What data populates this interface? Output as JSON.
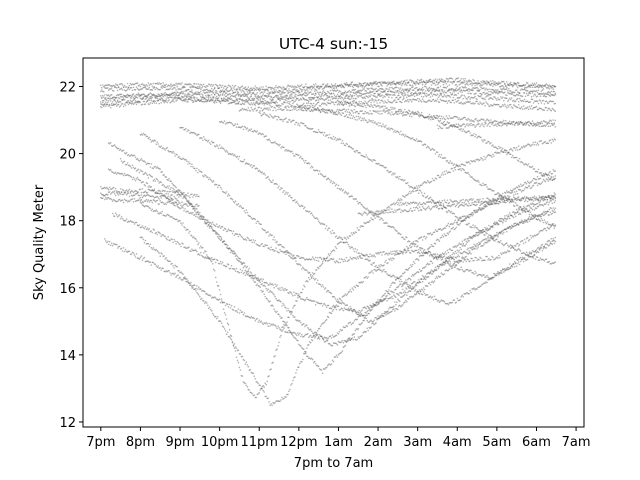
{
  "chart_data": {
    "type": "scatter",
    "title": "UTC-4 sun:-15",
    "xlabel": "7pm to 7am",
    "ylabel": "Sky Quality Meter",
    "x_ticks": [
      "7pm",
      "8pm",
      "9pm",
      "10pm",
      "11pm",
      "12pm",
      "1am",
      "2am",
      "3am",
      "4am",
      "5am",
      "6am",
      "7am"
    ],
    "y_ticks": [
      12,
      14,
      16,
      18,
      20,
      22
    ],
    "xlim": [
      -0.45,
      12.2
    ],
    "ylim": [
      11.85,
      22.85
    ],
    "grid": false,
    "marker_color": "#555555",
    "series": [
      {
        "points": [
          [
            0.0,
            21.6
          ],
          [
            1.0,
            21.7
          ],
          [
            2.0,
            21.75
          ],
          [
            3.0,
            21.7
          ],
          [
            4.0,
            21.65
          ],
          [
            5.0,
            21.7
          ],
          [
            6.0,
            21.75
          ],
          [
            7.0,
            21.8
          ],
          [
            8.0,
            21.85
          ],
          [
            9.0,
            21.85
          ],
          [
            10.0,
            21.8
          ],
          [
            11.0,
            21.75
          ],
          [
            11.5,
            21.7
          ]
        ]
      },
      {
        "points": [
          [
            0.0,
            21.7
          ],
          [
            1.0,
            21.75
          ],
          [
            2.0,
            21.8
          ],
          [
            3.0,
            21.8
          ],
          [
            4.0,
            21.75
          ],
          [
            5.0,
            21.8
          ],
          [
            6.0,
            21.85
          ],
          [
            7.0,
            21.9
          ],
          [
            8.0,
            21.95
          ],
          [
            9.0,
            21.95
          ],
          [
            10.0,
            21.9
          ],
          [
            11.0,
            21.85
          ],
          [
            11.5,
            21.8
          ]
        ]
      },
      {
        "points": [
          [
            0.0,
            21.5
          ],
          [
            1.0,
            21.6
          ],
          [
            2.0,
            21.65
          ],
          [
            3.0,
            21.6
          ],
          [
            4.0,
            21.55
          ],
          [
            5.0,
            21.6
          ],
          [
            6.0,
            21.65
          ],
          [
            7.0,
            21.7
          ],
          [
            8.0,
            21.75
          ],
          [
            9.0,
            21.7
          ],
          [
            10.0,
            21.65
          ],
          [
            11.0,
            21.55
          ],
          [
            11.5,
            21.5
          ]
        ]
      },
      {
        "points": [
          [
            0.0,
            21.9
          ],
          [
            1.0,
            21.95
          ],
          [
            2.0,
            21.95
          ],
          [
            3.0,
            21.9
          ],
          [
            4.0,
            21.85
          ],
          [
            5.0,
            21.9
          ],
          [
            6.0,
            22.0
          ],
          [
            7.0,
            22.05
          ],
          [
            8.0,
            22.1
          ],
          [
            9.0,
            22.1
          ],
          [
            10.0,
            22.05
          ],
          [
            11.0,
            22.0
          ],
          [
            11.5,
            21.95
          ]
        ]
      },
      {
        "points": [
          [
            0.0,
            21.4
          ],
          [
            1.0,
            21.5
          ],
          [
            2.0,
            21.6
          ],
          [
            3.0,
            21.55
          ],
          [
            4.0,
            21.5
          ],
          [
            5.0,
            21.45
          ],
          [
            6.0,
            21.5
          ],
          [
            7.0,
            21.55
          ],
          [
            8.0,
            21.6
          ],
          [
            9.0,
            21.55
          ],
          [
            10.0,
            21.45
          ],
          [
            11.0,
            21.35
          ],
          [
            11.5,
            21.3
          ]
        ]
      },
      {
        "points": [
          [
            0.0,
            22.0
          ],
          [
            1.0,
            22.05
          ],
          [
            2.0,
            22.05
          ],
          [
            3.0,
            22.0
          ],
          [
            4.0,
            21.95
          ],
          [
            5.0,
            22.0
          ],
          [
            6.0,
            22.05
          ],
          [
            7.0,
            22.1
          ],
          [
            8.0,
            22.15
          ],
          [
            9.0,
            22.2
          ],
          [
            10.0,
            22.1
          ],
          [
            11.0,
            22.05
          ],
          [
            11.5,
            22.0
          ]
        ]
      },
      {
        "points": [
          [
            3.5,
            21.3
          ],
          [
            4.5,
            21.35
          ],
          [
            5.5,
            21.3
          ],
          [
            6.5,
            21.25
          ],
          [
            7.5,
            21.2
          ],
          [
            8.5,
            21.1
          ],
          [
            9.5,
            21.0
          ],
          [
            10.5,
            20.9
          ],
          [
            11.5,
            20.85
          ]
        ]
      },
      {
        "points": [
          [
            8.5,
            20.8
          ],
          [
            9.5,
            20.85
          ],
          [
            10.5,
            20.9
          ],
          [
            11.5,
            20.95
          ]
        ]
      },
      {
        "points": [
          [
            0.0,
            19.0
          ],
          [
            0.5,
            18.9
          ],
          [
            1.0,
            18.9
          ],
          [
            1.5,
            18.85
          ],
          [
            2.0,
            18.8
          ],
          [
            2.5,
            18.7
          ]
        ]
      },
      {
        "points": [
          [
            0.0,
            18.7
          ],
          [
            0.5,
            18.6
          ],
          [
            1.0,
            18.6
          ],
          [
            1.5,
            18.55
          ],
          [
            2.0,
            18.5
          ],
          [
            2.5,
            18.45
          ]
        ]
      },
      {
        "points": [
          [
            0.0,
            18.8
          ],
          [
            0.5,
            18.8
          ],
          [
            1.0,
            18.75
          ],
          [
            1.5,
            18.7
          ],
          [
            2.0,
            18.65
          ]
        ]
      },
      {
        "points": [
          [
            6.5,
            18.2
          ],
          [
            7.5,
            18.3
          ],
          [
            8.5,
            18.4
          ],
          [
            9.5,
            18.5
          ],
          [
            10.5,
            18.6
          ],
          [
            11.5,
            18.7
          ]
        ]
      },
      {
        "points": [
          [
            7.5,
            18.5
          ],
          [
            8.5,
            18.55
          ],
          [
            9.5,
            18.6
          ],
          [
            10.5,
            18.65
          ],
          [
            11.5,
            18.7
          ]
        ]
      },
      {
        "points": [
          [
            1.0,
            18.5
          ],
          [
            2.0,
            18.0
          ],
          [
            2.8,
            16.8
          ],
          [
            3.3,
            14.5
          ],
          [
            3.6,
            13.2
          ],
          [
            3.9,
            12.7
          ],
          [
            4.2,
            13.2
          ],
          [
            4.6,
            14.8
          ],
          [
            5.2,
            16.2
          ],
          [
            6.0,
            17.3
          ],
          [
            7.0,
            18.2
          ],
          [
            8.0,
            19.0
          ],
          [
            9.0,
            19.6
          ],
          [
            10.0,
            20.0
          ],
          [
            11.0,
            20.3
          ],
          [
            11.5,
            20.4
          ]
        ]
      },
      {
        "points": [
          [
            1.0,
            17.5
          ],
          [
            2.0,
            16.5
          ],
          [
            3.0,
            15.0
          ],
          [
            3.8,
            13.5
          ],
          [
            4.3,
            12.5
          ],
          [
            4.7,
            12.8
          ],
          [
            5.2,
            14.2
          ],
          [
            6.0,
            15.6
          ],
          [
            7.0,
            16.6
          ],
          [
            8.0,
            17.4
          ],
          [
            9.0,
            18.0
          ],
          [
            10.0,
            18.6
          ],
          [
            11.0,
            19.1
          ],
          [
            11.5,
            19.3
          ]
        ]
      },
      {
        "points": [
          [
            0.2,
            20.3
          ],
          [
            1.5,
            19.5
          ],
          [
            2.5,
            18.2
          ],
          [
            3.5,
            16.8
          ],
          [
            4.5,
            15.2
          ],
          [
            5.2,
            14.0
          ],
          [
            5.6,
            13.5
          ],
          [
            6.0,
            14.0
          ],
          [
            6.8,
            15.3
          ],
          [
            7.5,
            16.3
          ],
          [
            8.5,
            17.4
          ],
          [
            9.5,
            18.3
          ],
          [
            10.5,
            19.0
          ],
          [
            11.5,
            19.5
          ]
        ]
      },
      {
        "points": [
          [
            0.5,
            19.8
          ],
          [
            2.0,
            18.8
          ],
          [
            3.0,
            17.5
          ],
          [
            4.0,
            16.2
          ],
          [
            5.0,
            15.0
          ],
          [
            5.8,
            14.3
          ],
          [
            6.5,
            14.5
          ],
          [
            7.5,
            15.6
          ],
          [
            8.5,
            16.6
          ],
          [
            9.5,
            17.6
          ],
          [
            10.5,
            18.3
          ],
          [
            11.5,
            18.8
          ]
        ]
      },
      {
        "points": [
          [
            1.0,
            20.6
          ],
          [
            2.0,
            19.9
          ],
          [
            3.0,
            19.0
          ],
          [
            4.0,
            17.9
          ],
          [
            5.0,
            16.7
          ],
          [
            6.0,
            15.6
          ],
          [
            6.8,
            15.0
          ],
          [
            7.5,
            15.4
          ],
          [
            8.5,
            16.3
          ],
          [
            9.5,
            17.2
          ],
          [
            10.5,
            17.9
          ],
          [
            11.5,
            18.4
          ]
        ]
      },
      {
        "points": [
          [
            2.0,
            20.8
          ],
          [
            3.0,
            20.2
          ],
          [
            4.0,
            19.5
          ],
          [
            5.0,
            18.5
          ],
          [
            6.0,
            17.5
          ],
          [
            7.0,
            16.6
          ],
          [
            8.0,
            15.9
          ],
          [
            8.8,
            15.5
          ],
          [
            9.5,
            16.0
          ],
          [
            10.5,
            16.8
          ],
          [
            11.5,
            17.5
          ]
        ]
      },
      {
        "points": [
          [
            3.0,
            21.0
          ],
          [
            4.0,
            20.6
          ],
          [
            5.0,
            19.9
          ],
          [
            6.0,
            19.0
          ],
          [
            7.0,
            18.1
          ],
          [
            8.0,
            17.2
          ],
          [
            9.0,
            16.6
          ],
          [
            9.8,
            16.3
          ],
          [
            10.5,
            16.7
          ],
          [
            11.5,
            17.4
          ]
        ]
      },
      {
        "points": [
          [
            0.3,
            18.2
          ],
          [
            1.5,
            17.6
          ],
          [
            2.5,
            17.0
          ],
          [
            3.5,
            16.5
          ],
          [
            4.5,
            16.0
          ],
          [
            5.5,
            15.5
          ],
          [
            6.5,
            15.3
          ],
          [
            7.5,
            15.8
          ],
          [
            8.5,
            16.6
          ],
          [
            9.5,
            17.3
          ],
          [
            10.5,
            17.9
          ],
          [
            11.5,
            18.3
          ]
        ]
      },
      {
        "points": [
          [
            0.1,
            17.4
          ],
          [
            1.0,
            16.9
          ],
          [
            2.0,
            16.3
          ],
          [
            3.0,
            15.6
          ],
          [
            4.0,
            15.0
          ],
          [
            5.0,
            14.6
          ],
          [
            5.8,
            14.5
          ],
          [
            6.5,
            15.1
          ],
          [
            7.5,
            16.0
          ],
          [
            8.5,
            16.9
          ],
          [
            9.5,
            17.6
          ],
          [
            10.5,
            18.2
          ],
          [
            11.5,
            18.6
          ]
        ]
      },
      {
        "points": [
          [
            4.0,
            21.2
          ],
          [
            5.0,
            20.9
          ],
          [
            6.0,
            20.4
          ],
          [
            7.0,
            19.7
          ],
          [
            8.0,
            18.9
          ],
          [
            9.0,
            18.1
          ],
          [
            10.0,
            17.4
          ],
          [
            11.0,
            16.9
          ],
          [
            11.5,
            16.7
          ]
        ]
      },
      {
        "points": [
          [
            5.0,
            21.4
          ],
          [
            6.0,
            21.2
          ],
          [
            7.0,
            20.9
          ],
          [
            8.0,
            20.4
          ],
          [
            9.0,
            19.6
          ],
          [
            10.0,
            18.8
          ],
          [
            11.0,
            18.1
          ],
          [
            11.5,
            17.8
          ]
        ]
      },
      {
        "points": [
          [
            6.0,
            21.5
          ],
          [
            7.0,
            21.4
          ],
          [
            8.0,
            21.2
          ],
          [
            9.0,
            20.8
          ],
          [
            10.0,
            20.2
          ],
          [
            11.0,
            19.5
          ],
          [
            11.5,
            19.2
          ]
        ]
      },
      {
        "points": [
          [
            0.2,
            19.5
          ],
          [
            1.0,
            19.2
          ],
          [
            2.0,
            18.4
          ],
          [
            3.0,
            17.8
          ],
          [
            4.0,
            17.3
          ],
          [
            5.0,
            16.9
          ],
          [
            6.0,
            16.8
          ],
          [
            7.0,
            17.0
          ],
          [
            8.0,
            17.1
          ],
          [
            9.0,
            16.8
          ],
          [
            10.0,
            16.9
          ],
          [
            11.0,
            17.6
          ],
          [
            11.5,
            17.9
          ]
        ]
      }
    ]
  }
}
